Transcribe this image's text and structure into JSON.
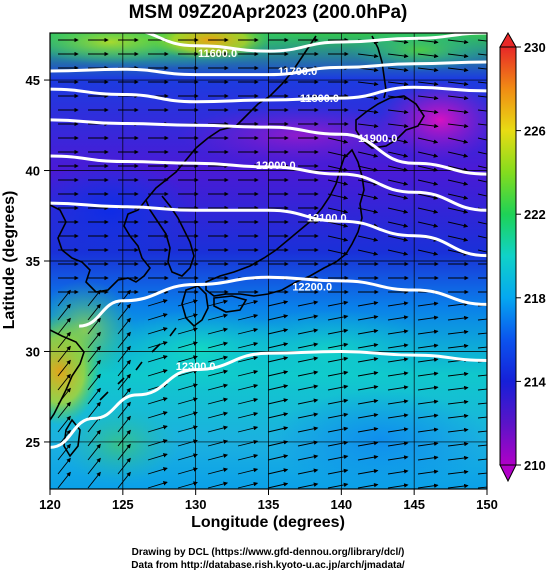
{
  "title": "MSM 09Z20Apr2023 (200.0hPa)",
  "x_axis": {
    "label": "Longitude (degrees)",
    "range": [
      120,
      150
    ],
    "ticks": [
      {
        "value": 120,
        "label": "120"
      },
      {
        "value": 125,
        "label": "125"
      },
      {
        "value": 130,
        "label": "130"
      },
      {
        "value": 135,
        "label": "135"
      },
      {
        "value": 140,
        "label": "140"
      },
      {
        "value": 145,
        "label": "145"
      },
      {
        "value": 150,
        "label": "150"
      }
    ]
  },
  "y_axis": {
    "label": "Latitude  (degrees)",
    "range": [
      22.4,
      47.6
    ],
    "ticks": [
      {
        "value": 25,
        "label": "25"
      },
      {
        "value": 30,
        "label": "30"
      },
      {
        "value": 35,
        "label": "35"
      },
      {
        "value": 40,
        "label": "40"
      },
      {
        "value": 45,
        "label": "45"
      }
    ]
  },
  "colorbar": {
    "min": 210,
    "max": 230,
    "ticks": [
      {
        "value": 210,
        "label": "210"
      },
      {
        "value": 214,
        "label": "214"
      },
      {
        "value": 218,
        "label": "218"
      },
      {
        "value": 222,
        "label": "222"
      },
      {
        "value": 226,
        "label": "226"
      },
      {
        "value": 230,
        "label": "230"
      }
    ]
  },
  "contours": [
    {
      "label": "11600.0",
      "label_lon": 131.5,
      "label_lat": 46.5,
      "points": [
        [
          120,
          48.0
        ],
        [
          125,
          47.8
        ],
        [
          130,
          46.9
        ],
        [
          135,
          46.6
        ],
        [
          140,
          47.1
        ],
        [
          145,
          47.3
        ],
        [
          150,
          47.6
        ]
      ]
    },
    {
      "label": "11700.0",
      "label_lon": 137.0,
      "label_lat": 45.5,
      "points": [
        [
          120,
          45.5
        ],
        [
          125,
          45.6
        ],
        [
          130,
          45.3
        ],
        [
          135,
          45.3
        ],
        [
          140,
          45.7
        ],
        [
          145,
          45.9
        ],
        [
          150,
          46.0
        ]
      ]
    },
    {
      "label": "11800.0",
      "label_lon": 138.5,
      "label_lat": 44.0,
      "points": [
        [
          120,
          44.5
        ],
        [
          125,
          44.2
        ],
        [
          130,
          43.8
        ],
        [
          135,
          43.9
        ],
        [
          140,
          44.0
        ],
        [
          145,
          44.6
        ],
        [
          150,
          44.4
        ]
      ]
    },
    {
      "label": "11900.0",
      "label_lon": 142.5,
      "label_lat": 41.8,
      "points": [
        [
          120,
          42.8
        ],
        [
          125,
          42.6
        ],
        [
          130,
          42.5
        ],
        [
          135,
          42.4
        ],
        [
          140,
          42.0
        ],
        [
          145,
          40.4
        ],
        [
          150,
          39.8
        ]
      ]
    },
    {
      "label": "12000.0",
      "label_lon": 135.5,
      "label_lat": 40.3,
      "points": [
        [
          120,
          40.8
        ],
        [
          125,
          40.5
        ],
        [
          130,
          40.4
        ],
        [
          135,
          40.2
        ],
        [
          140,
          39.8
        ],
        [
          145,
          38.8
        ],
        [
          150,
          37.8
        ]
      ]
    },
    {
      "label": "12100.0",
      "label_lon": 139.0,
      "label_lat": 37.4,
      "points": [
        [
          120,
          38.2
        ],
        [
          125,
          38.0
        ],
        [
          130,
          37.8
        ],
        [
          135,
          37.8
        ],
        [
          140,
          37.2
        ],
        [
          145,
          36.4
        ],
        [
          150,
          35.3
        ]
      ]
    },
    {
      "label": "12200.0",
      "label_lon": 138.0,
      "label_lat": 33.6,
      "points": [
        [
          122,
          31.4
        ],
        [
          125,
          32.8
        ],
        [
          130,
          33.7
        ],
        [
          135,
          34.1
        ],
        [
          140,
          33.9
        ],
        [
          145,
          33.4
        ],
        [
          150,
          32.6
        ]
      ]
    },
    {
      "label": "12300.0",
      "label_lon": 130.0,
      "label_lat": 29.2,
      "points": [
        [
          120,
          24.7
        ],
        [
          123,
          26.3
        ],
        [
          126,
          27.6
        ],
        [
          130,
          29.0
        ],
        [
          135,
          29.9
        ],
        [
          140,
          30.0
        ],
        [
          145,
          29.8
        ],
        [
          150,
          29.5
        ]
      ]
    }
  ],
  "credits": [
    "Drawing by DCL (https://www.gfd-dennou.org/library/dcl/)",
    "Data from http://database.rish.kyoto-u.ac.jp/arch/jmadata/"
  ]
}
